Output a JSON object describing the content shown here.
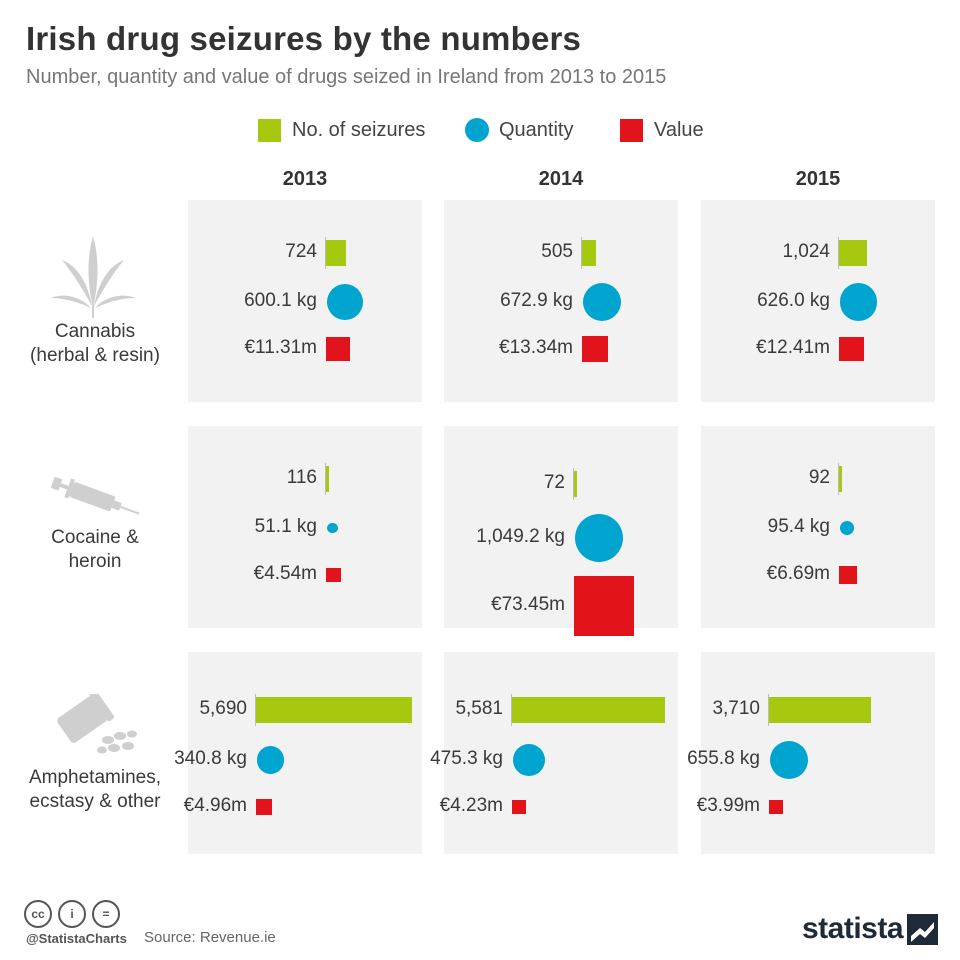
{
  "title": "Irish drug seizures by the numbers",
  "subtitle": "Number, quantity and value of drugs seized in Ireland from 2013 to 2015",
  "legend": [
    {
      "label": "No. of seizures",
      "color": "#a6c80f",
      "shape": "square"
    },
    {
      "label": "Quantity",
      "color": "#00a5cf",
      "shape": "circle"
    },
    {
      "label": "Value",
      "color": "#e2131b",
      "shape": "square"
    }
  ],
  "years": [
    "2013",
    "2014",
    "2015"
  ],
  "rows": [
    {
      "label_line1": "Cannabis",
      "label_line2": "(herbal & resin)",
      "icon": "cannabis-leaf-icon"
    },
    {
      "label_line1": "Cocaine &",
      "label_line2": "heroin",
      "icon": "syringe-icon"
    },
    {
      "label_line1": "Amphetamines,",
      "label_line2": "ecstasy & other",
      "icon": "pill-bottle-icon"
    }
  ],
  "chart_data": {
    "type": "table",
    "title": "Irish drug seizures by the numbers",
    "subtitle": "Number, quantity and value of drugs seized in Ireland from 2013 to 2015",
    "columns": [
      "2013",
      "2014",
      "2015"
    ],
    "series_names": [
      "No. of seizures",
      "Quantity",
      "Value"
    ],
    "cells": [
      [
        {
          "seizures": 724,
          "seizures_label": "724",
          "quantity_kg": 600.1,
          "quantity_label": "600.1 kg",
          "value_m": 11.31,
          "value_label": "€11.31m"
        },
        {
          "seizures": 505,
          "seizures_label": "505",
          "quantity_kg": 672.9,
          "quantity_label": "672.9 kg",
          "value_m": 13.34,
          "value_label": "€13.34m"
        },
        {
          "seizures": 1024,
          "seizures_label": "1,024",
          "quantity_kg": 626.0,
          "quantity_label": "626.0 kg",
          "value_m": 12.41,
          "value_label": "€12.41m"
        }
      ],
      [
        {
          "seizures": 116,
          "seizures_label": "116",
          "quantity_kg": 51.1,
          "quantity_label": "51.1 kg",
          "value_m": 4.54,
          "value_label": "€4.54m"
        },
        {
          "seizures": 72,
          "seizures_label": "72",
          "quantity_kg": 1049.2,
          "quantity_label": "1,049.2 kg",
          "value_m": 73.45,
          "value_label": "€73.45m"
        },
        {
          "seizures": 92,
          "seizures_label": "92",
          "quantity_kg": 95.4,
          "quantity_label": "95.4 kg",
          "value_m": 6.69,
          "value_label": "€6.69m"
        }
      ],
      [
        {
          "seizures": 5690,
          "seizures_label": "5,690",
          "quantity_kg": 340.8,
          "quantity_label": "340.8 kg",
          "value_m": 4.96,
          "value_label": "€4.96m"
        },
        {
          "seizures": 5581,
          "seizures_label": "5,581",
          "quantity_kg": 475.3,
          "quantity_label": "475.3 kg",
          "value_m": 4.23,
          "value_label": "€4.23m"
        },
        {
          "seizures": 3710,
          "seizures_label": "3,710",
          "quantity_kg": 655.8,
          "quantity_label": "655.8 kg",
          "value_m": 3.99,
          "value_label": "€3.99m"
        }
      ]
    ]
  },
  "footer": {
    "handle": "@StatistaCharts",
    "source": "Source: Revenue.ie",
    "logo": "statista",
    "cc_icons": [
      "cc",
      "i",
      "="
    ]
  }
}
